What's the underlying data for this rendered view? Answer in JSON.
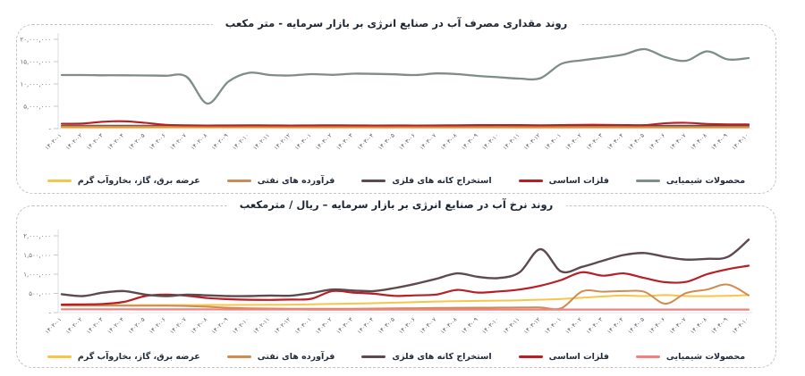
{
  "page": {
    "background": "#ffffff",
    "text_color": "#1b2431",
    "border_style": "dashed"
  },
  "panels": [
    {
      "title": "روند مقداری مصرف آب در صنایع انرژی بر بازار سرمایه - متر مکعب",
      "y_ticks": [
        "۲۰,۰۰۰,۰۰۰",
        "۱۵,۰۰۰,۰۰۰",
        "۱۰,۰۰۰,۰۰۰",
        "۵,۰۰۰,۰۰۰",
        "-"
      ]
    },
    {
      "title": "روند نرخ آب در صنایع انرژی بر بازار سرمایه – ریال / مترمکعب",
      "y_ticks": [
        "۲,۰۰۰,۰۰۰",
        "۱,۵۰۰,۰۰۰",
        "۱,۰۰۰,۰۰۰",
        "۵۰۰,۰۰۰",
        "-"
      ]
    }
  ],
  "chart_data": [
    {
      "type": "line",
      "title": "روند مقداری مصرف آب در صنایع انرژی بر بازار سرمایه - متر مکعب",
      "unit": "متر مکعب",
      "ylim": [
        0,
        20000000
      ],
      "y_tick_values": [
        20000000,
        15000000,
        10000000,
        5000000,
        0
      ],
      "grid": false,
      "legend_position": "bottom",
      "categories": [
        "۱۴۰۲-۰۱",
        "۱۴۰۲-۰۲",
        "۱۴۰۲-۰۳",
        "۱۴۰۲-۰۴",
        "۱۴۰۲-۰۵",
        "۱۴۰۲-۰۶",
        "۱۴۰۲-۰۷",
        "۱۴۰۲-۰۸",
        "۱۴۰۲-۰۹",
        "۱۴۰۲-۱۰",
        "۱۴۰۲-۱۱",
        "۱۴۰۲-۱۲",
        "۱۴۰۳-۰۱",
        "۱۴۰۳-۰۲",
        "۱۴۰۳-۰۳",
        "۱۴۰۳-۰۴",
        "۱۴۰۳-۰۵",
        "۱۴۰۳-۰۶",
        "۱۴۰۳-۰۷",
        "۱۴۰۳-۰۸",
        "۱۴۰۳-۰۹",
        "۱۴۰۳-۱۰",
        "۱۴۰۳-۱۱",
        "۱۴۰۳-۱۲",
        "۱۴۰۴-۰۱",
        "۱۴۰۴-۰۲",
        "۱۴۰۴-۰۳",
        "۱۴۰۴-۰۴",
        "۱۴۰۴-۰۵",
        "۱۴۰۴-۰۶",
        "۱۴۰۴-۰۷",
        "۱۴۰۴-۰۸",
        "۱۴۰۴-۰۹",
        "۱۴۰۴-۱۰"
      ],
      "series": [
        {
          "name": "محصولات شیمیایی",
          "color": "#7e8d86",
          "values": [
            12000000,
            12000000,
            11950000,
            11950000,
            11900000,
            11850000,
            11600000,
            5600000,
            10500000,
            12500000,
            12000000,
            11900000,
            12200000,
            12050000,
            12300000,
            12250000,
            12150000,
            12000000,
            12350000,
            12200000,
            11800000,
            11500000,
            11200000,
            11300000,
            14500000,
            15300000,
            15900000,
            16600000,
            17800000,
            16000000,
            15200000,
            17300000,
            15500000,
            15800000
          ]
        },
        {
          "name": "فلزات اساسی",
          "color": "#b71f24",
          "values": [
            1100000,
            1150000,
            1550000,
            1650000,
            1300000,
            850000,
            750000,
            700000,
            720000,
            750000,
            720000,
            700000,
            720000,
            750000,
            720000,
            700000,
            720000,
            700000,
            720000,
            750000,
            780000,
            800000,
            780000,
            750000,
            780000,
            850000,
            850000,
            800000,
            780000,
            1200000,
            1300000,
            1050000,
            950000,
            950000
          ]
        },
        {
          "name": "استخراج کانه های فلزی",
          "color": "#5d4a4e",
          "values": [
            650000,
            640000,
            650000,
            660000,
            650000,
            640000,
            630000,
            620000,
            630000,
            640000,
            650000,
            640000,
            650000,
            660000,
            650000,
            640000,
            650000,
            640000,
            650000,
            660000,
            650000,
            650000,
            640000,
            650000,
            660000,
            670000,
            660000,
            650000,
            650000,
            660000,
            650000,
            650000,
            660000,
            670000
          ]
        },
        {
          "name": "فرآورده های نفتی",
          "color": "#cf8c52",
          "values": [
            450000,
            445000,
            440000,
            435000,
            430000,
            425000,
            420000,
            410000,
            400000,
            395000,
            390000,
            385000,
            380000,
            380000,
            375000,
            375000,
            370000,
            370000,
            365000,
            365000,
            360000,
            360000,
            355000,
            355000,
            350000,
            350000,
            345000,
            345000,
            340000,
            340000,
            340000,
            345000,
            350000,
            350000
          ]
        },
        {
          "name": "عرضه برق، گاز، بخاروآب گرم",
          "color": "#f6c64a",
          "values": [
            230000,
            228000,
            226000,
            225000,
            224000,
            223000,
            222000,
            220000,
            219000,
            218000,
            217000,
            216000,
            215000,
            215000,
            214000,
            214000,
            213000,
            213000,
            212000,
            212000,
            211000,
            211000,
            210000,
            210000,
            210000,
            211000,
            212000,
            213000,
            214000,
            215000,
            216000,
            217000,
            218000,
            220000
          ]
        }
      ]
    },
    {
      "type": "line",
      "title": "روند نرخ آب در صنایع انرژی بر بازار سرمایه – ریال / مترمکعب",
      "unit": "ریال / مترمکعب",
      "ylim": [
        0,
        2000000
      ],
      "y_tick_values": [
        2000000,
        1500000,
        1000000,
        500000,
        0
      ],
      "grid": false,
      "legend_position": "bottom",
      "categories": [
        "۱۴۰۲-۰۱",
        "۱۴۰۲-۰۲",
        "۱۴۰۲-۰۳",
        "۱۴۰۲-۰۴",
        "۱۴۰۲-۰۵",
        "۱۴۰۲-۰۶",
        "۱۴۰۲-۰۷",
        "۱۴۰۲-۰۸",
        "۱۴۰۲-۰۹",
        "۱۴۰۲-۱۰",
        "۱۴۰۲-۱۱",
        "۱۴۰۲-۱۲",
        "۱۴۰۳-۰۱",
        "۱۴۰۳-۰۲",
        "۱۴۰۳-۰۳",
        "۱۴۰۳-۰۴",
        "۱۴۰۳-۰۵",
        "۱۴۰۳-۰۶",
        "۱۴۰۳-۰۷",
        "۱۴۰۳-۰۸",
        "۱۴۰۳-۰۹",
        "۱۴۰۳-۱۰",
        "۱۴۰۳-۱۱",
        "۱۴۰۳-۱۲",
        "۱۴۰۴-۰۱",
        "۱۴۰۴-۰۲",
        "۱۴۰۴-۰۳",
        "۱۴۰۴-۰۴",
        "۱۴۰۴-۰۵",
        "۱۴۰۴-۰۶",
        "۱۴۰۴-۰۷",
        "۱۴۰۴-۰۸",
        "۱۴۰۴-۰۹",
        "۱۴۰۴-۱۰"
      ],
      "series": [
        {
          "name": "محصولات شیمیایی",
          "color": "#f28080",
          "values": [
            86000,
            86000,
            85000,
            85000,
            84000,
            84000,
            83000,
            83000,
            82000,
            82000,
            81000,
            81000,
            80000,
            80000,
            80000,
            80000,
            80000,
            80000,
            80000,
            80000,
            80000,
            80000,
            80000,
            80000,
            80000,
            80000,
            80000,
            80000,
            80000,
            80000,
            80000,
            80000,
            80000,
            80000
          ]
        },
        {
          "name": "فلزات اساسی",
          "color": "#b71f24",
          "values": [
            210000,
            215000,
            225000,
            280000,
            430000,
            470000,
            440000,
            380000,
            350000,
            335000,
            330000,
            340000,
            360000,
            560000,
            520000,
            490000,
            435000,
            450000,
            470000,
            590000,
            520000,
            550000,
            600000,
            700000,
            850000,
            1050000,
            960000,
            1020000,
            900000,
            790000,
            800000,
            1000000,
            1130000,
            1220000
          ]
        },
        {
          "name": "استخراج کانه های فلزی",
          "color": "#5d4a4e",
          "values": [
            480000,
            430000,
            520000,
            560000,
            470000,
            430000,
            465000,
            450000,
            430000,
            430000,
            445000,
            440000,
            510000,
            600000,
            575000,
            560000,
            640000,
            750000,
            880000,
            1020000,
            930000,
            900000,
            1050000,
            1650000,
            1070000,
            1190000,
            1350000,
            1500000,
            1550000,
            1450000,
            1380000,
            1400000,
            1450000,
            1900000
          ]
        },
        {
          "name": "فرآورده های نفتی",
          "color": "#cf8c52",
          "values": [
            185000,
            184000,
            183000,
            182000,
            180000,
            178000,
            172000,
            150000,
            125000,
            110000,
            105000,
            100000,
            100000,
            100000,
            100000,
            105000,
            110000,
            115000,
            120000,
            125000,
            128000,
            130000,
            132000,
            135000,
            115000,
            550000,
            545000,
            560000,
            540000,
            230000,
            510000,
            600000,
            730000,
            450000
          ]
        },
        {
          "name": "عرضه برق، گاز، بخاروآب گرم",
          "color": "#f6c64a",
          "values": [
            195000,
            195000,
            194000,
            194000,
            195000,
            196000,
            196000,
            197000,
            198000,
            200000,
            203000,
            206000,
            215000,
            225000,
            235000,
            245000,
            258000,
            272000,
            288000,
            298000,
            305000,
            312000,
            320000,
            338000,
            355000,
            385000,
            420000,
            445000,
            430000,
            455000,
            430000,
            428000,
            438000,
            455000
          ]
        }
      ]
    }
  ]
}
